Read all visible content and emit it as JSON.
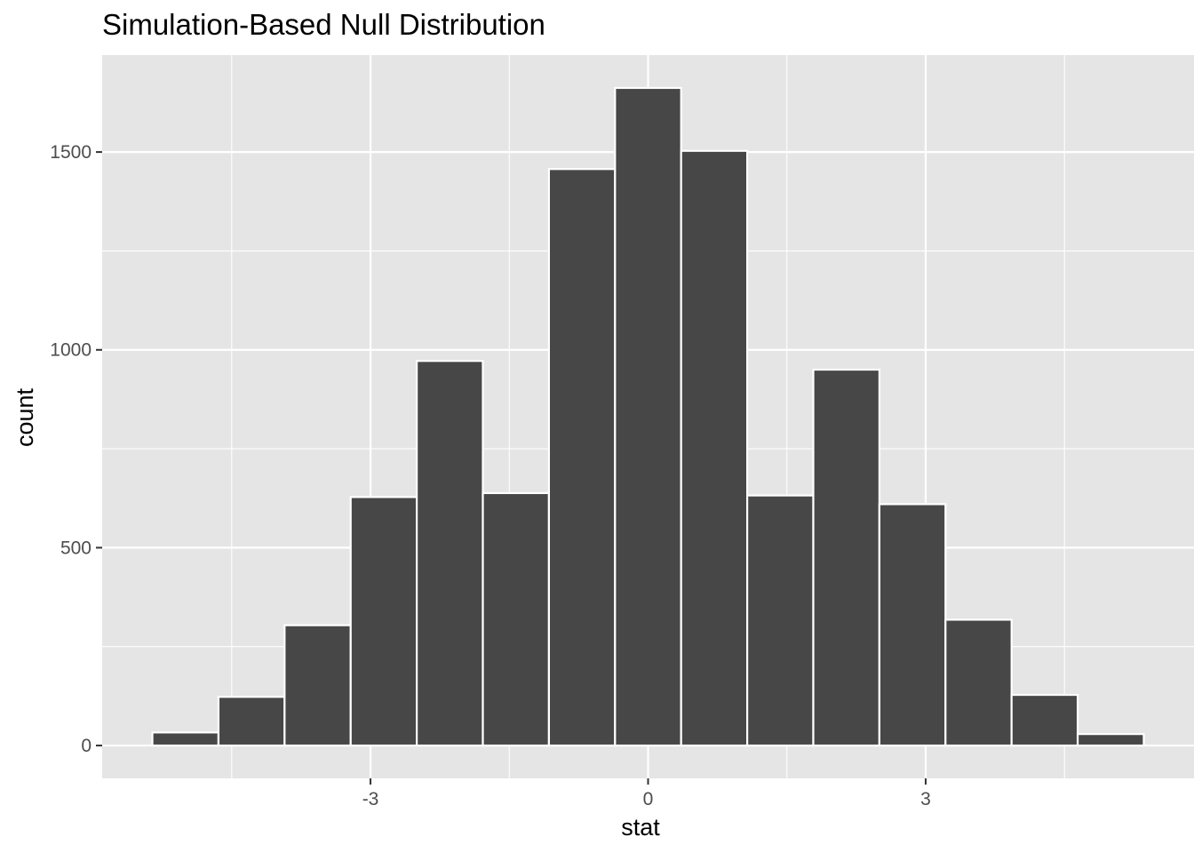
{
  "chart_data": {
    "type": "bar",
    "title": "Simulation-Based Null Distribution",
    "xlabel": "stat",
    "ylabel": "count",
    "bin_width": 0.7143,
    "bins": [
      {
        "x_center": -5.0,
        "count": 33
      },
      {
        "x_center": -4.2857,
        "count": 123
      },
      {
        "x_center": -3.5714,
        "count": 304
      },
      {
        "x_center": -2.8571,
        "count": 628
      },
      {
        "x_center": -2.1429,
        "count": 972
      },
      {
        "x_center": -1.4286,
        "count": 638
      },
      {
        "x_center": -0.7143,
        "count": 1457
      },
      {
        "x_center": 0.0,
        "count": 1662
      },
      {
        "x_center": 0.7143,
        "count": 1503
      },
      {
        "x_center": 1.4286,
        "count": 632
      },
      {
        "x_center": 2.1429,
        "count": 950
      },
      {
        "x_center": 2.8571,
        "count": 610
      },
      {
        "x_center": 3.5714,
        "count": 318
      },
      {
        "x_center": 4.2857,
        "count": 128
      },
      {
        "x_center": 5.0,
        "count": 29
      }
    ],
    "xlim": [
      -5.9,
      5.9
    ],
    "ylim": [
      -83,
      1745
    ],
    "x_ticks": [
      -3,
      0,
      3
    ],
    "x_tick_labels": [
      "-3",
      "0",
      "3"
    ],
    "x_minor_ticks": [
      -4.5,
      -1.5,
      1.5,
      4.5
    ],
    "y_ticks": [
      0,
      500,
      1000,
      1500
    ],
    "y_tick_labels": [
      "0",
      "500",
      "1000",
      "1500"
    ],
    "y_minor_ticks": [
      250,
      750,
      1250
    ],
    "grid": true,
    "legend": "none",
    "colors": {
      "panel_background": "#e5e5e5",
      "grid_line": "#ffffff",
      "bar_fill": "#474747",
      "bar_outline": "#ffffff",
      "tick_mark": "#333333"
    }
  }
}
